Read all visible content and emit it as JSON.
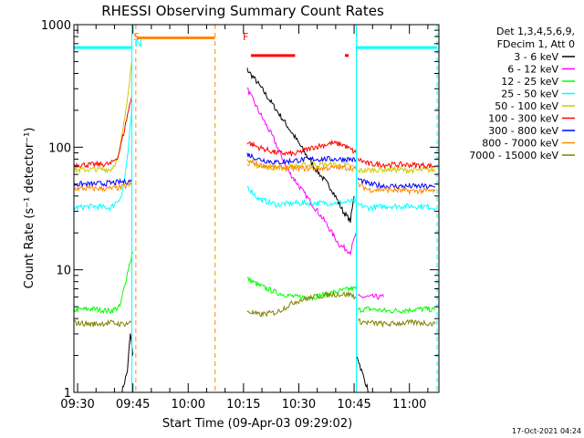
{
  "chart_data": {
    "type": "line",
    "title": "RHESSI Observing Summary Count Rates",
    "xlabel": "Start Time (09-Apr-03 09:29:02)",
    "ylabel": "Count Rate (s⁻¹ detector⁻¹)",
    "y_scale": "log",
    "ylim": [
      1,
      1000
    ],
    "xlim_minutes": [
      0,
      99
    ],
    "x_ticks": [
      {
        "label": "09:30",
        "minute": 1
      },
      {
        "label": "09:45",
        "minute": 16
      },
      {
        "label": "10:00",
        "minute": 31
      },
      {
        "label": "10:15",
        "minute": 46
      },
      {
        "label": "10:30",
        "minute": 61
      },
      {
        "label": "10:45",
        "minute": 76
      },
      {
        "label": "11:00",
        "minute": 91
      }
    ],
    "y_ticks": [
      {
        "label": "1",
        "value": 1
      },
      {
        "label": "10",
        "value": 10
      },
      {
        "label": "100",
        "value": 100
      },
      {
        "label": "1000",
        "value": 1000
      }
    ],
    "legend_header": [
      "Det 1,3,4,5,6,9,",
      "FDecim 1, Att 0"
    ],
    "legend_position": "right",
    "grid": false,
    "series": [
      {
        "name": "3 - 6 keV",
        "color": "#000000",
        "segments": [
          {
            "x": [
              13,
              14.5,
              15.3,
              16
            ],
            "y": [
              1,
              1.5,
              3,
              2
            ]
          },
          {
            "x": [
              47,
              50,
              55,
              60,
              65,
              70,
              73,
              75,
              76
            ],
            "y": [
              430,
              330,
              200,
              120,
              70,
              45,
              30,
              25,
              40
            ]
          },
          {
            "x": [
              76.8,
              78,
              80
            ],
            "y": [
              2,
              1.5,
              1
            ]
          }
        ]
      },
      {
        "name": "6 - 12 keV",
        "color": "#ff00ff",
        "segments": [
          {
            "x": [
              47,
              50,
              54,
              58,
              63,
              68,
              72,
              75,
              76.5
            ],
            "y": [
              300,
              200,
              120,
              65,
              40,
              25,
              16,
              14,
              20
            ]
          },
          {
            "x": [
              77,
              80,
              84
            ],
            "y": [
              6,
              6,
              6
            ]
          }
        ]
      },
      {
        "name": "12 - 25 keV",
        "color": "#00ff00",
        "segments": [
          {
            "x": [
              0,
              5,
              10,
              12.5
            ],
            "y": [
              4.7,
              4.8,
              4.6,
              5
            ]
          },
          {
            "x": [
              12.5,
              14,
              15,
              16
            ],
            "y": [
              5,
              8,
              11,
              14
            ]
          },
          {
            "x": [
              47,
              50,
              55,
              60,
              65,
              70,
              75,
              76.5
            ],
            "y": [
              8.5,
              7.5,
              6.5,
              6,
              6,
              6.5,
              7,
              7
            ]
          },
          {
            "x": [
              77,
              80,
              85,
              90,
              95,
              98
            ],
            "y": [
              4.7,
              4.8,
              4.6,
              4.7,
              4.8,
              4.7
            ]
          }
        ]
      },
      {
        "name": "25 - 50 keV",
        "color": "#00ffff",
        "segments": [
          {
            "x": [
              0,
              5,
              10,
              13,
              14.5,
              15.7
            ],
            "y": [
              32,
              33,
              32,
              40,
              80,
              200
            ]
          },
          {
            "x": [
              47,
              50,
              55,
              60,
              65,
              70,
              75,
              76.5
            ],
            "y": [
              48,
              38,
              34,
              35,
              35,
              35,
              36,
              36
            ]
          },
          {
            "x": [
              77,
              80,
              85,
              90,
              95,
              98
            ],
            "y": [
              34,
              32,
              33,
              33,
              33,
              32
            ]
          }
        ]
      },
      {
        "name": "50 - 100 keV",
        "color": "#cccc00",
        "segments": [
          {
            "x": [
              0,
              5,
              10,
              12,
              13.5,
              14.8,
              15.7
            ],
            "y": [
              65,
              66,
              66,
              80,
              150,
              300,
              500
            ]
          },
          {
            "x": [
              47,
              50,
              55,
              60,
              65,
              70,
              75,
              76.5
            ],
            "y": [
              75,
              70,
              68,
              70,
              72,
              72,
              70,
              68
            ]
          },
          {
            "x": [
              77,
              80,
              85,
              90,
              95,
              98
            ],
            "y": [
              64,
              65,
              66,
              65,
              65,
              65
            ]
          }
        ]
      },
      {
        "name": "100 - 300 keV",
        "color": "#ff0000",
        "segments": [
          {
            "x": [
              0,
              5,
              10,
              12,
              13.5,
              14.8,
              15.7
            ],
            "y": [
              72,
              72,
              73,
              85,
              130,
              200,
              260
            ]
          },
          {
            "x": [
              47,
              50,
              55,
              60,
              65,
              70,
              73,
              76.5
            ],
            "y": [
              110,
              100,
              90,
              88,
              100,
              108,
              105,
              90
            ]
          },
          {
            "x": [
              77,
              80,
              85,
              90,
              95,
              98
            ],
            "y": [
              80,
              73,
              72,
              72,
              71,
              70
            ]
          }
        ]
      },
      {
        "name": "300 - 800 keV",
        "color": "#0000ff",
        "segments": [
          {
            "x": [
              0,
              5,
              10,
              13,
              15.7
            ],
            "y": [
              50,
              50,
              51,
              52,
              53
            ]
          },
          {
            "x": [
              47,
              50,
              55,
              60,
              65,
              70,
              75,
              76.5
            ],
            "y": [
              88,
              80,
              75,
              78,
              80,
              80,
              80,
              78
            ]
          },
          {
            "x": [
              77,
              80,
              85,
              90,
              95,
              98
            ],
            "y": [
              55,
              50,
              48,
              48,
              48,
              47
            ]
          }
        ]
      },
      {
        "name": "800 - 7000 keV",
        "color": "#ff8800",
        "segments": [
          {
            "x": [
              0,
              5,
              10,
              13,
              15.7
            ],
            "y": [
              46,
              46,
              46,
              47,
              50
            ]
          },
          {
            "x": [
              47,
              50,
              55,
              60,
              65,
              70,
              75,
              76.5
            ],
            "y": [
              78,
              72,
              68,
              67,
              67,
              68,
              68,
              66
            ]
          },
          {
            "x": [
              77,
              80,
              85,
              90,
              95,
              98
            ],
            "y": [
              50,
              45,
              45,
              44,
              44,
              44
            ]
          }
        ]
      },
      {
        "name": "7000 - 15000 keV",
        "color": "#808000",
        "segments": [
          {
            "x": [
              0,
              5,
              10,
              13,
              15.5
            ],
            "y": [
              3.7,
              3.6,
              3.7,
              3.6,
              3.7
            ]
          },
          {
            "x": [
              47,
              50,
              55,
              60,
              65,
              70,
              75,
              76.5
            ],
            "y": [
              4.6,
              4.3,
              4.5,
              5.5,
              6,
              6.3,
              6.3,
              6
            ]
          },
          {
            "x": [
              77,
              80,
              85,
              90,
              95,
              98
            ],
            "y": [
              3.8,
              3.7,
              3.6,
              3.7,
              3.7,
              3.6
            ]
          }
        ]
      }
    ],
    "annotations": [
      {
        "label": "S",
        "color": "#ff8800",
        "minute": 17
      },
      {
        "label": "N",
        "color": "#00ffff",
        "minute": 17.5
      },
      {
        "label": "F",
        "color": "#ff0000",
        "minute": 46.6
      }
    ],
    "status_bars": [
      {
        "color": "#00ffff",
        "x": [
          0,
          15.6
        ],
        "y": 650
      },
      {
        "color": "#ff8800",
        "x": [
          17,
          38.2
        ],
        "y": 780
      },
      {
        "color": "#ff0000",
        "x": [
          48,
          60
        ],
        "y": 560
      },
      {
        "color": "#ff0000",
        "x": [
          73.5,
          74.5
        ],
        "y": 560
      },
      {
        "color": "#00ffff",
        "x": [
          76.5,
          98.5
        ],
        "y": 650
      }
    ],
    "vertical_lines": [
      {
        "minute": 0,
        "color": "#00ffff",
        "style": "solid"
      },
      {
        "minute": 15.7,
        "color": "#00ffff",
        "style": "solid"
      },
      {
        "minute": 16.8,
        "color": "#ff8800",
        "style": "dashed"
      },
      {
        "minute": 38.3,
        "color": "#ff8800",
        "style": "dashed"
      },
      {
        "minute": 76.6,
        "color": "#00ffff",
        "style": "solid"
      },
      {
        "minute": 98.5,
        "color": "#00ffff",
        "style": "dashed"
      }
    ]
  },
  "footer": {
    "timestamp": "17-Oct-2021 04:24"
  }
}
